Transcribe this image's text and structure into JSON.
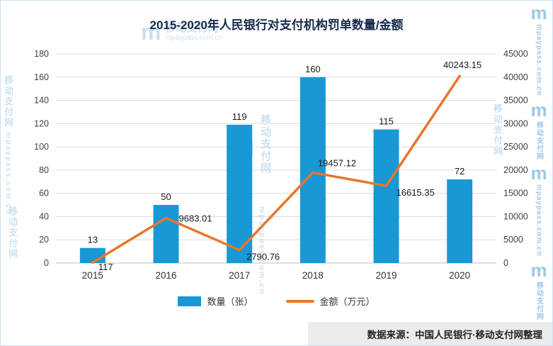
{
  "title": "2015-2020年人民银行对支付机构罚单数量/金额",
  "chart_data": {
    "type": "combo",
    "categories": [
      "2015",
      "2016",
      "2017",
      "2018",
      "2019",
      "2020"
    ],
    "series": [
      {
        "name": "数量（张）",
        "type": "bar",
        "axis": "left",
        "color": "#1898d5",
        "values": [
          13,
          50,
          119,
          160,
          115,
          72
        ]
      },
      {
        "name": "金额（万元）",
        "type": "line",
        "axis": "right",
        "color": "#e8762c",
        "values": [
          117,
          9683.01,
          2790.76,
          19457.12,
          16615.35,
          40243.15
        ]
      }
    ],
    "left_axis": {
      "min": 0,
      "max": 180,
      "step": 20,
      "ticks": [
        0,
        20,
        40,
        60,
        80,
        100,
        120,
        140,
        160,
        180
      ]
    },
    "right_axis": {
      "min": 0,
      "max": 45000,
      "step": 5000,
      "ticks": [
        0,
        5000,
        10000,
        15000,
        20000,
        25000,
        30000,
        35000,
        40000,
        45000
      ]
    },
    "grid": true,
    "legend_position": "bottom"
  },
  "legend": {
    "bar_label": "数量（张）",
    "line_label": "金额（万元）"
  },
  "source": "数据来源：中国人民银行·移动支付网整理",
  "watermark": {
    "logo": "m",
    "brand": "移动支付网",
    "domain": "mpaypass.com.cn"
  }
}
